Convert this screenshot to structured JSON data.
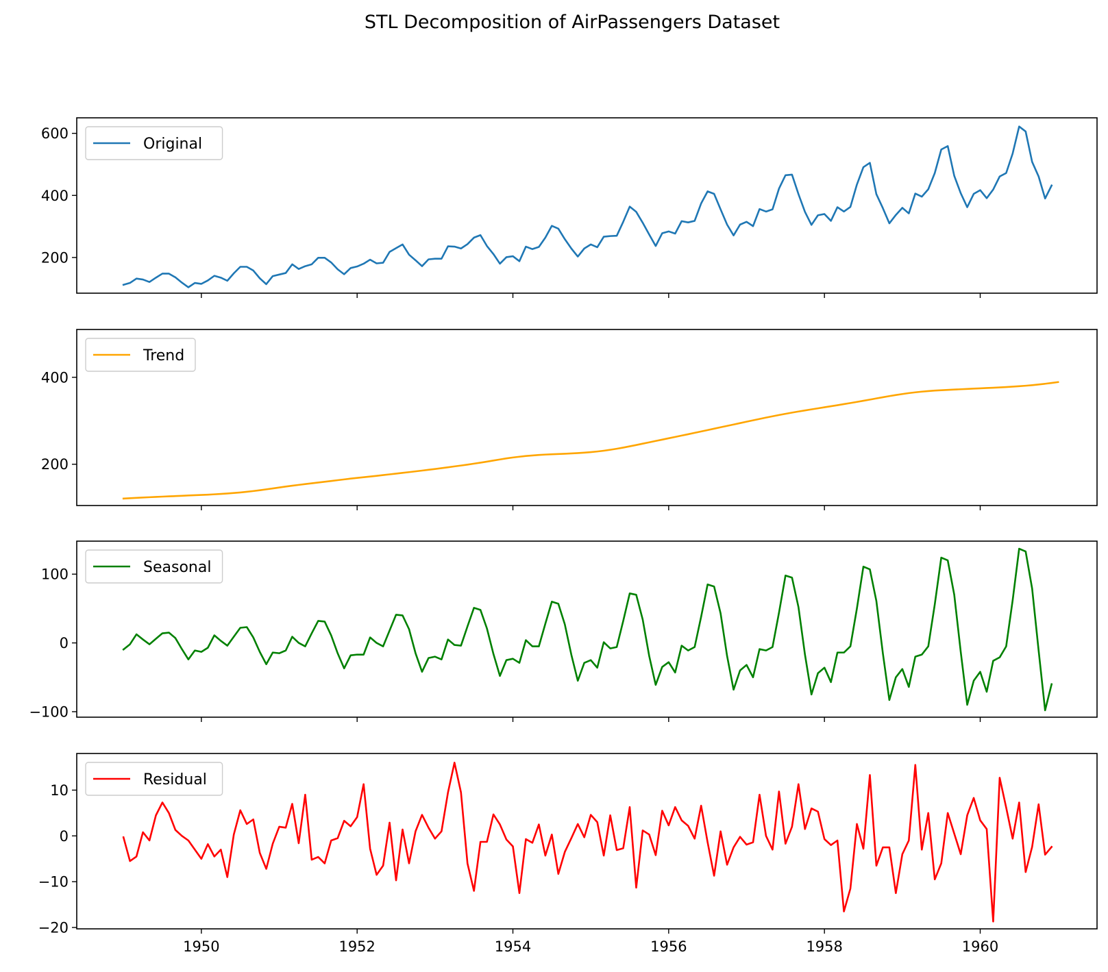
{
  "figure": {
    "title": "STL Decomposition of AirPassengers Dataset"
  },
  "chart_data": [
    {
      "type": "line",
      "series": [
        {
          "name": "Original",
          "color": "#1f77b4",
          "values": [
            112,
            118,
            132,
            129,
            121,
            135,
            148,
            148,
            136,
            119,
            104,
            118,
            115,
            126,
            141,
            135,
            125,
            149,
            170,
            170,
            158,
            133,
            114,
            140,
            145,
            150,
            178,
            163,
            172,
            178,
            199,
            199,
            184,
            162,
            146,
            166,
            171,
            180,
            193,
            181,
            183,
            218,
            230,
            242,
            209,
            191,
            172,
            194,
            196,
            196,
            236,
            235,
            229,
            243,
            264,
            272,
            237,
            211,
            180,
            201,
            204,
            188,
            235,
            227,
            234,
            264,
            302,
            293,
            259,
            229,
            203,
            229,
            242,
            233,
            267,
            269,
            270,
            315,
            364,
            347,
            312,
            274,
            237,
            278,
            284,
            277,
            317,
            313,
            318,
            374,
            413,
            405,
            355,
            306,
            271,
            306,
            315,
            301,
            356,
            348,
            355,
            422,
            465,
            467,
            404,
            347,
            305,
            336,
            340,
            318,
            362,
            348,
            363,
            435,
            491,
            505,
            404,
            359,
            310,
            337,
            360,
            342,
            406,
            396,
            420,
            472,
            548,
            559,
            463,
            407,
            362,
            405,
            417,
            391,
            419,
            461,
            472,
            535,
            622,
            606,
            508,
            461,
            390,
            432
          ]
        }
      ],
      "x_start": 1949.0,
      "x_step": 0.08333333333333333,
      "xlim": [
        1948.4,
        1961.5
      ],
      "ylim": [
        85,
        650
      ],
      "yticks": [
        200,
        400,
        600
      ],
      "legend": "upper-left",
      "grid": false
    },
    {
      "type": "line",
      "series": [
        {
          "name": "Trend",
          "color": "#ffa500",
          "values": [
            121,
            121.8,
            122.6,
            123.4,
            124.1,
            124.8,
            125.5,
            126.1,
            126.7,
            127.4,
            128.1,
            128.7,
            129.3,
            130,
            130.8,
            131.7,
            132.7,
            133.8,
            135.1,
            136.6,
            138.3,
            140.2,
            142.2,
            144.3,
            146.5,
            148.6,
            150.6,
            152.5,
            154.3,
            156.1,
            157.9,
            159.7,
            161.5,
            163.3,
            165.1,
            166.9,
            168.5,
            170.1,
            171.7,
            173.3,
            175,
            176.7,
            178.4,
            180.1,
            181.8,
            183.6,
            185.4,
            187.2,
            189,
            191,
            193,
            195,
            197,
            199.1,
            201.3,
            203.6,
            206,
            208.5,
            211,
            213.4,
            215.5,
            217.3,
            218.9,
            220.2,
            221.3,
            222.2,
            222.9,
            223.5,
            224.1,
            224.8,
            225.6,
            226.6,
            227.8,
            229.3,
            231.1,
            233.2,
            235.6,
            238.3,
            241.2,
            244.2,
            247.3,
            250.4,
            253.5,
            256.6,
            259.7,
            262.8,
            265.9,
            269,
            272.2,
            275.4,
            278.6,
            281.8,
            285,
            288.2,
            291.4,
            294.6,
            297.8,
            301,
            304.2,
            307.3,
            310.3,
            313.2,
            316,
            318.7,
            321.3,
            323.8,
            326.2,
            328.6,
            331,
            333.4,
            335.8,
            338.3,
            340.8,
            343.4,
            346,
            348.7,
            351.4,
            354.1,
            356.7,
            359.2,
            361.5,
            363.6,
            365.4,
            367,
            368.3,
            369.4,
            370.3,
            371.1,
            371.8,
            372.5,
            373.2,
            373.9,
            374.6,
            375.3,
            376,
            376.8,
            377.6,
            378.5,
            379.5,
            380.6,
            381.9,
            383.4,
            385.1,
            387,
            389
          ]
        }
      ],
      "x_start": 1949.0,
      "x_step": 0.08333333333333333,
      "xlim": [
        1948.4,
        1961.5
      ],
      "ylim": [
        105,
        510
      ],
      "yticks": [
        200,
        400
      ],
      "legend": "upper-left",
      "grid": false
    },
    {
      "type": "line",
      "series": [
        {
          "name": "Seasonal",
          "color": "#008000",
          "values": [
            -9.5,
            -2,
            12.5,
            5,
            -2,
            6,
            14,
            15,
            7,
            -9,
            -24,
            -11,
            -13,
            -7,
            11,
            3,
            -4,
            9,
            22,
            23,
            8,
            -13,
            -31,
            -14,
            -15,
            -11,
            9,
            0,
            -5,
            14,
            32,
            31,
            11,
            -15,
            -37,
            -18,
            -17,
            -17,
            8,
            0,
            -5,
            18,
            41,
            40,
            20,
            -15,
            -42,
            -22,
            -20,
            -24,
            5,
            -3,
            -4,
            24,
            51,
            48,
            21,
            -16,
            -48,
            -25,
            -23,
            -29,
            4,
            -5,
            -5,
            28,
            60,
            57,
            27,
            -17,
            -55,
            -29,
            -25,
            -36,
            1,
            -8,
            -6,
            32,
            72,
            70,
            34,
            -19,
            -61,
            -35,
            -28,
            -43,
            -4,
            -11,
            -6,
            38,
            85,
            82,
            43,
            -19,
            -68,
            -40,
            -32,
            -50,
            -9,
            -11,
            -6,
            44,
            98,
            95,
            52,
            -17,
            -75,
            -44,
            -36,
            -57,
            -14,
            -14,
            -5,
            50,
            111,
            107,
            61,
            -15,
            -83,
            -50,
            -38,
            -64,
            -20,
            -17,
            -5,
            56,
            124,
            120,
            70,
            -13,
            -90,
            -55,
            -42,
            -71,
            -26,
            -21,
            -5,
            62,
            137,
            133,
            79,
            -11,
            -98,
            -60
          ]
        }
      ],
      "x_start": 1949.0,
      "x_step": 0.08333333333333333,
      "xlim": [
        1948.4,
        1961.5
      ],
      "ylim": [
        -108,
        148
      ],
      "yticks": [
        -100,
        0,
        100
      ],
      "legend": "upper-left",
      "grid": false
    },
    {
      "type": "line",
      "series": [
        {
          "name": "Residual",
          "color": "#ff0000",
          "values": [
            -0.3,
            -5.5,
            -4.5,
            0.8,
            -1,
            4.5,
            7.3,
            5,
            1.3,
            0,
            -1,
            -3,
            -5,
            -1.8,
            -4.5,
            -3,
            -9,
            0.3,
            5.6,
            2.6,
            3.6,
            -3.7,
            -7.2,
            -1.7,
            2,
            1.8,
            7,
            -1.6,
            9,
            -5.2,
            -4.6,
            -6,
            -1,
            -0.5,
            3.3,
            2.1,
            4.1,
            11.3,
            -2.8,
            -8.5,
            -6.5,
            2.9,
            -9.7,
            1.4,
            -6,
            1,
            4.6,
            1.8,
            -0.6,
            1,
            9.5,
            16,
            9.5,
            -6,
            -12,
            -1.3,
            -1.3,
            4.7,
            2.5,
            -0.8,
            -2.3,
            -12.5,
            -0.7,
            -1.5,
            2.5,
            -4.3,
            0.3,
            -8.3,
            -3.5,
            -0.5,
            2.6,
            -0.3,
            4.6,
            3,
            -4.3,
            4.5,
            -3.1,
            -2.7,
            6.3,
            -11.3,
            1.2,
            0.3,
            -4.2,
            5.5,
            2.3,
            6.3,
            3.4,
            2.2,
            -0.6,
            6.6,
            -1.4,
            -8.7,
            1,
            -6.3,
            -2.5,
            -0.2,
            -1.9,
            -1.4,
            9,
            0,
            -3,
            9.7,
            -1.7,
            2,
            11.3,
            1.5,
            6,
            5.3,
            -0.7,
            -2,
            -1,
            -16.5,
            -11.5,
            2.6,
            -2.8,
            13.3,
            -6.5,
            -2.5,
            -2.5,
            -12.5,
            -4,
            -1,
            15.5,
            -3,
            5,
            -9.5,
            -6,
            5,
            0.5,
            -4,
            4.5,
            8.3,
            3.4,
            1.5,
            -18.7,
            12.7,
            6.2,
            -0.6,
            7.3,
            -7.9,
            -2.4,
            6.9,
            -4.1,
            -2.4
          ]
        }
      ],
      "x_start": 1949.0,
      "x_step": 0.08333333333333333,
      "xlim": [
        1948.4,
        1961.5
      ],
      "ylim": [
        -20.3,
        18
      ],
      "yticks": [
        -20,
        -10,
        0,
        10
      ],
      "xticks": [
        1950,
        1952,
        1954,
        1956,
        1958,
        1960
      ],
      "legend": "upper-left",
      "grid": false
    }
  ]
}
